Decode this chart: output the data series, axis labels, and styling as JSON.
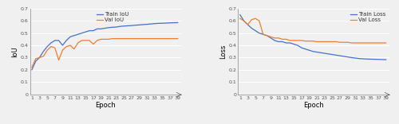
{
  "iou_train": [
    0.2,
    0.27,
    0.3,
    0.35,
    0.39,
    0.42,
    0.44,
    0.44,
    0.4,
    0.44,
    0.47,
    0.48,
    0.49,
    0.5,
    0.51,
    0.52,
    0.52,
    0.535,
    0.535,
    0.54,
    0.545,
    0.548,
    0.55,
    0.555,
    0.558,
    0.56,
    0.562,
    0.565,
    0.567,
    0.57,
    0.572,
    0.575,
    0.578,
    0.58,
    0.581,
    0.582,
    0.584,
    0.585,
    0.586
  ],
  "iou_val": [
    0.22,
    0.29,
    0.3,
    0.31,
    0.36,
    0.39,
    0.38,
    0.28,
    0.36,
    0.39,
    0.4,
    0.37,
    0.42,
    0.44,
    0.44,
    0.44,
    0.41,
    0.44,
    0.45,
    0.45,
    0.45,
    0.455,
    0.455,
    0.455,
    0.455,
    0.455,
    0.455,
    0.455,
    0.455,
    0.455,
    0.455,
    0.455,
    0.455,
    0.455,
    0.455,
    0.455,
    0.455,
    0.455,
    0.455
  ],
  "loss_train": [
    0.65,
    0.6,
    0.57,
    0.54,
    0.52,
    0.5,
    0.49,
    0.48,
    0.46,
    0.44,
    0.43,
    0.43,
    0.42,
    0.42,
    0.41,
    0.4,
    0.38,
    0.37,
    0.36,
    0.35,
    0.345,
    0.34,
    0.335,
    0.33,
    0.325,
    0.32,
    0.315,
    0.31,
    0.305,
    0.3,
    0.296,
    0.292,
    0.29,
    0.288,
    0.287,
    0.286,
    0.285,
    0.284,
    0.283
  ],
  "loss_val": [
    0.62,
    0.6,
    0.57,
    0.61,
    0.62,
    0.6,
    0.49,
    0.48,
    0.47,
    0.46,
    0.46,
    0.45,
    0.45,
    0.44,
    0.44,
    0.44,
    0.44,
    0.435,
    0.435,
    0.435,
    0.43,
    0.43,
    0.43,
    0.43,
    0.43,
    0.43,
    0.425,
    0.425,
    0.425,
    0.42,
    0.42,
    0.42,
    0.42,
    0.42,
    0.42,
    0.42,
    0.42,
    0.42,
    0.42
  ],
  "epochs": 39,
  "ylim_iou": [
    0,
    0.7
  ],
  "ylim_loss": [
    0,
    0.7
  ],
  "yticks": [
    0,
    0.1,
    0.2,
    0.3,
    0.4,
    0.5,
    0.6,
    0.7
  ],
  "ytick_labels": [
    "0",
    "0.1",
    "0.2",
    "0.3",
    "0.4",
    "0.5",
    "0.6",
    "0.7"
  ],
  "xticks": [
    1,
    3,
    5,
    7,
    9,
    11,
    13,
    15,
    17,
    19,
    21,
    23,
    25,
    27,
    29,
    31,
    33,
    35,
    37,
    39
  ],
  "xlabel": "Epoch",
  "ylabel_iou": "IoU",
  "ylabel_loss": "Loss",
  "color_train": "#4472c4",
  "color_val": "#ed7d31",
  "legend_iou": [
    "Train IoU",
    "Val IoU"
  ],
  "legend_loss": [
    "Train Loss",
    "Val Loss"
  ],
  "linewidth": 0.9,
  "fontsize_tick": 4.5,
  "fontsize_label": 6,
  "fontsize_legend": 5.0,
  "bg_color": "#f0f0f0",
  "grid_color": "#ffffff",
  "spine_color": "#999999"
}
